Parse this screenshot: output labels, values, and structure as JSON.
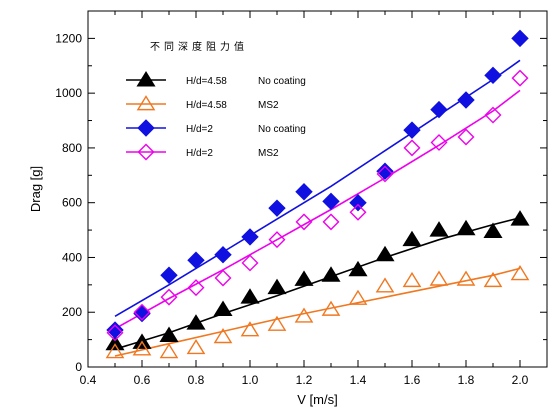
{
  "chart_data": {
    "type": "scatter",
    "title": "",
    "xlabel": "V [m/s]",
    "ylabel": "Drag [g]",
    "xlim": [
      0.4,
      2.1
    ],
    "ylim": [
      0,
      1300
    ],
    "xticks": [
      0.4,
      0.6,
      0.8,
      1.0,
      1.2,
      1.4,
      1.6,
      1.8,
      2.0
    ],
    "xtick_labels": [
      "0.4",
      "0.6",
      "0.8",
      "1.0",
      "1.2",
      "1.4",
      "1.6",
      "1.8",
      "2.0"
    ],
    "yticks": [
      0,
      200,
      400,
      600,
      800,
      1000,
      1200
    ],
    "ytick_labels": [
      "0",
      "200",
      "400",
      "600",
      "800",
      "1000",
      "1200"
    ],
    "grid": false,
    "legend": {
      "title": "不同深度阻力值",
      "placement": "top-left"
    },
    "series": [
      {
        "name_left": "H/d=4.58",
        "name_right": "No coating",
        "color": "#000000",
        "marker": "triangle-filled",
        "x": [
          0.5,
          0.6,
          0.7,
          0.8,
          0.9,
          1.0,
          1.1,
          1.2,
          1.3,
          1.4,
          1.5,
          1.6,
          1.7,
          1.8,
          1.9,
          2.0
        ],
        "y": [
          85,
          90,
          115,
          160,
          210,
          255,
          290,
          320,
          335,
          355,
          410,
          465,
          500,
          505,
          495,
          540
        ],
        "fit_x": [
          0.5,
          0.7,
          0.9,
          1.1,
          1.3,
          1.5,
          1.7,
          1.9,
          2.0
        ],
        "fit_y": [
          65,
          125,
          195,
          260,
          330,
          400,
          465,
          520,
          545
        ]
      },
      {
        "name_left": "H/d=4.58",
        "name_right": "MS2",
        "color": "#f07820",
        "marker": "triangle-open",
        "x": [
          0.5,
          0.6,
          0.7,
          0.8,
          0.9,
          1.0,
          1.1,
          1.2,
          1.3,
          1.4,
          1.5,
          1.6,
          1.7,
          1.8,
          1.9,
          2.0
        ],
        "y": [
          55,
          65,
          55,
          70,
          110,
          135,
          155,
          185,
          210,
          250,
          295,
          315,
          320,
          320,
          315,
          340
        ],
        "fit_x": [
          0.5,
          0.7,
          0.9,
          1.1,
          1.3,
          1.5,
          1.7,
          1.9,
          2.0
        ],
        "fit_y": [
          40,
          85,
          130,
          175,
          215,
          255,
          295,
          335,
          360
        ]
      },
      {
        "name_left": "H/d=2",
        "name_right": "No coating",
        "color": "#1010e0",
        "marker": "diamond-filled",
        "x": [
          0.5,
          0.6,
          0.7,
          0.8,
          0.9,
          1.0,
          1.1,
          1.2,
          1.3,
          1.4,
          1.5,
          1.6,
          1.7,
          1.8,
          1.9,
          2.0
        ],
        "y": [
          135,
          195,
          335,
          390,
          410,
          475,
          580,
          640,
          605,
          600,
          715,
          865,
          940,
          975,
          1065,
          1200
        ],
        "fit_x": [
          0.5,
          0.7,
          0.9,
          1.1,
          1.3,
          1.5,
          1.7,
          1.9,
          2.0
        ],
        "fit_y": [
          185,
          300,
          420,
          540,
          660,
          790,
          920,
          1050,
          1120
        ]
      },
      {
        "name_left": "H/d=2",
        "name_right": "MS2",
        "color": "#ee00ee",
        "marker": "diamond-open",
        "x": [
          0.5,
          0.6,
          0.7,
          0.8,
          0.9,
          1.0,
          1.1,
          1.2,
          1.3,
          1.4,
          1.5,
          1.6,
          1.7,
          1.8,
          1.9,
          2.0
        ],
        "y": [
          125,
          200,
          255,
          290,
          325,
          380,
          465,
          530,
          530,
          565,
          705,
          800,
          820,
          840,
          920,
          1055
        ],
        "fit_x": [
          0.5,
          0.7,
          0.9,
          1.1,
          1.3,
          1.5,
          1.7,
          1.9,
          2.0
        ],
        "fit_y": [
          140,
          250,
          355,
          465,
          575,
          690,
          810,
          935,
          1010
        ]
      }
    ]
  }
}
